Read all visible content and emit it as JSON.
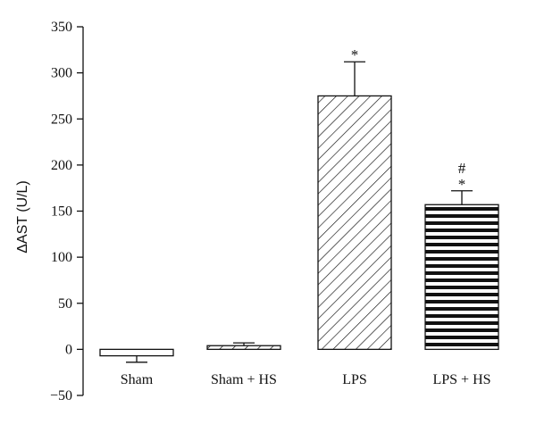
{
  "chart_data": {
    "type": "bar",
    "title": "",
    "xlabel": "",
    "ylabel": "ΔAST (U/L)",
    "ylim": [
      -50,
      350
    ],
    "yticks": [
      -50,
      0,
      50,
      100,
      150,
      200,
      250,
      300,
      350
    ],
    "ytick_labels": [
      "−50",
      "0",
      "50",
      "100",
      "150",
      "200",
      "250",
      "300",
      "350"
    ],
    "grid": false,
    "categories": [
      "Sham",
      "Sham + HS",
      "LPS",
      "LPS + HS"
    ],
    "values": [
      -7,
      4,
      275,
      157
    ],
    "errors": [
      7,
      3,
      37,
      15
    ],
    "patterns": [
      "none",
      "hatch-diagonal-sparse",
      "hatch-diagonal",
      "hatch-horizontal"
    ],
    "annotations": [
      {
        "category": "LPS",
        "lines": [
          "*"
        ]
      },
      {
        "category": "LPS + HS",
        "lines": [
          "#",
          "*"
        ]
      }
    ]
  }
}
